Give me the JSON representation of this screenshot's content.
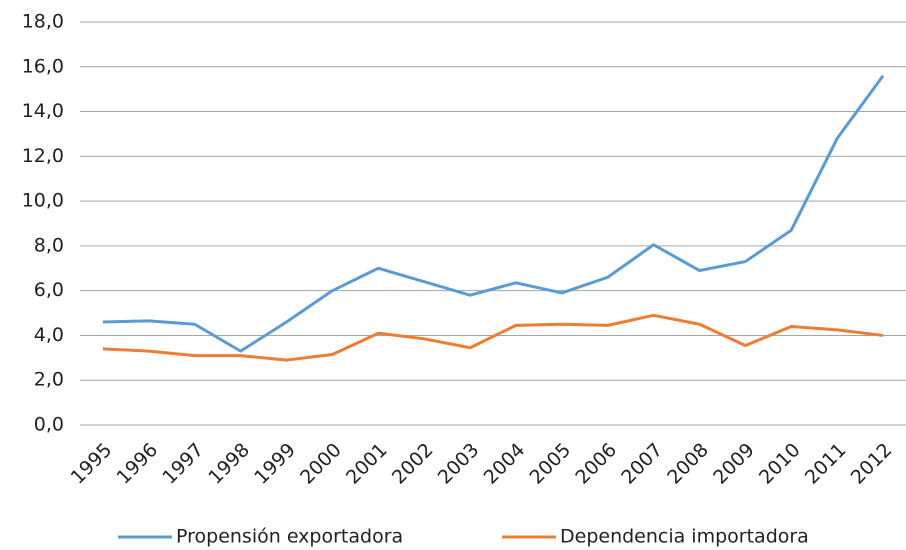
{
  "chart_data": {
    "type": "line",
    "categories": [
      "1995",
      "1996",
      "1997",
      "1998",
      "1999",
      "2000",
      "2001",
      "2002",
      "2003",
      "2004",
      "2005",
      "2006",
      "2007",
      "2008",
      "2009",
      "2010",
      "2011",
      "2012"
    ],
    "series": [
      {
        "name": "Propensión exportadora",
        "color": "#5b9bd5",
        "values": [
          4.6,
          4.65,
          4.5,
          3.3,
          4.6,
          6.0,
          7.0,
          6.4,
          5.8,
          6.35,
          5.9,
          6.6,
          8.05,
          6.9,
          7.3,
          8.7,
          12.8,
          15.6
        ]
      },
      {
        "name": "Dependencia importadora",
        "color": "#ed7d31",
        "values": [
          3.4,
          3.3,
          3.1,
          3.1,
          2.9,
          3.15,
          4.1,
          3.85,
          3.45,
          4.45,
          4.5,
          4.45,
          4.9,
          4.5,
          3.55,
          4.4,
          4.25,
          4.0
        ]
      }
    ],
    "ylim": [
      0,
      18
    ],
    "yticks": [
      {
        "value": 0,
        "label": "0,0"
      },
      {
        "value": 2,
        "label": "2,0"
      },
      {
        "value": 4,
        "label": "4,0"
      },
      {
        "value": 6,
        "label": "6,0"
      },
      {
        "value": 8,
        "label": "8,0"
      },
      {
        "value": 10,
        "label": "10,0"
      },
      {
        "value": 12,
        "label": "12,0"
      },
      {
        "value": 14,
        "label": "14,0"
      },
      {
        "value": 16,
        "label": "16,0"
      },
      {
        "value": 18,
        "label": "18,0"
      }
    ],
    "grid": true,
    "legend": "bottom"
  }
}
